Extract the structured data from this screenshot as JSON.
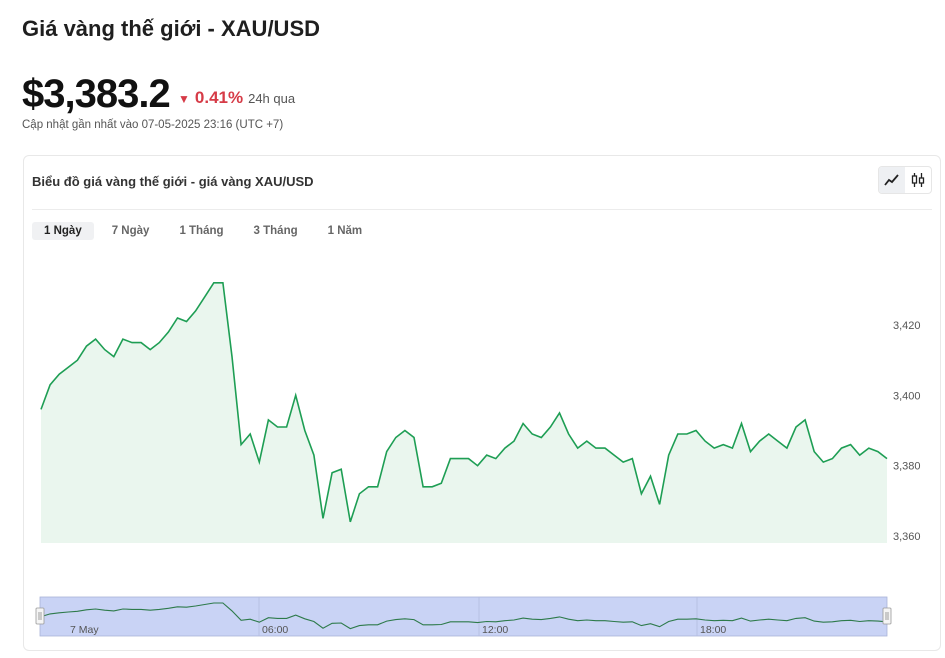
{
  "page": {
    "title": "Giá vàng thế giới - XAU/USD",
    "price": "$3,383.2",
    "change_pct": "0.41%",
    "change_period": "24h qua",
    "updated": "Cập nhật gần nhất vào 07-05-2025 23:16 (UTC +7)"
  },
  "card": {
    "title": "Biểu đồ giá vàng thế giới - giá vàng XAU/USD",
    "tabs": [
      {
        "label": "1 Ngày",
        "active": true
      },
      {
        "label": "7 Ngày",
        "active": false
      },
      {
        "label": "1 Tháng",
        "active": false
      },
      {
        "label": "3 Tháng",
        "active": false
      },
      {
        "label": "1 Năm",
        "active": false
      }
    ],
    "chart_type_buttons": [
      {
        "icon": "line-chart-icon",
        "active": true
      },
      {
        "icon": "candlestick-icon",
        "active": false
      }
    ]
  },
  "colors": {
    "line": "#1e9e54",
    "area": "#eaf6ee",
    "change_negative": "#d63b47",
    "navigator_fill": "#c9d3f5",
    "navigator_line": "#2d7a4a"
  },
  "chart_data": {
    "type": "area",
    "title": "",
    "xlabel": "",
    "ylabel": "",
    "ylim": [
      3355,
      3440
    ],
    "yticks": [
      3360,
      3380,
      3400,
      3420
    ],
    "ytick_labels": [
      "3,360",
      "3,380",
      "3,400",
      "3,420"
    ],
    "navigator_tick_labels": [
      "7 May",
      "06:00",
      "12:00",
      "18:00"
    ],
    "grid": false,
    "legend": "none",
    "series": [
      {
        "values": [
          3396,
          3403,
          3406,
          3408,
          3410,
          3414,
          3416,
          3413,
          3411,
          3416,
          3415,
          3415,
          3413,
          3415,
          3418,
          3422,
          3421,
          3424,
          3428,
          3432,
          3432,
          3411,
          3386,
          3389,
          3381,
          3393,
          3391,
          3391,
          3400,
          3390,
          3383,
          3365,
          3378,
          3379,
          3364,
          3372,
          3374,
          3374,
          3384,
          3388,
          3390,
          3388,
          3374,
          3374,
          3375,
          3382,
          3382,
          3382,
          3380,
          3383,
          3382,
          3385,
          3387,
          3392,
          3389,
          3388,
          3391,
          3395,
          3389,
          3385,
          3387,
          3385,
          3385,
          3383,
          3381,
          3382,
          3372,
          3377,
          3369,
          3383,
          3389,
          3389,
          3390,
          3387,
          3385,
          3386,
          3385,
          3392,
          3384,
          3387,
          3389,
          3387,
          3385,
          3391,
          3393,
          3384,
          3381,
          3382,
          3385,
          3386,
          3383,
          3385,
          3384,
          3382
        ]
      }
    ]
  }
}
